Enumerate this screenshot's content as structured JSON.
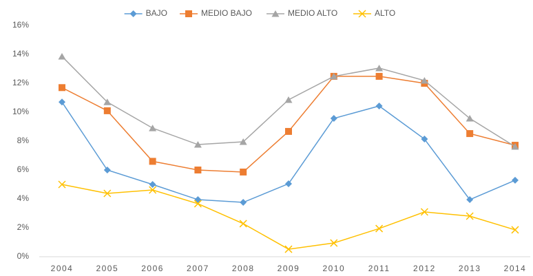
{
  "chart_data": {
    "type": "line",
    "categories": [
      "2004",
      "2005",
      "2006",
      "2007",
      "2008",
      "2009",
      "2010",
      "2011",
      "2012",
      "2013",
      "2014"
    ],
    "series": [
      {
        "name": "BAJO",
        "color": "#5b9bd5",
        "marker": "diamond",
        "values": [
          10.7,
          6.0,
          5.0,
          3.95,
          3.76,
          5.05,
          9.57,
          10.43,
          8.14,
          3.95,
          5.29
        ]
      },
      {
        "name": "MEDIO BAJO",
        "color": "#ed7d31",
        "marker": "square",
        "values": [
          11.7,
          10.1,
          6.6,
          6.0,
          5.86,
          8.67,
          12.48,
          12.48,
          12.0,
          8.52,
          7.71
        ]
      },
      {
        "name": "MEDIO ALTO",
        "color": "#a5a5a5",
        "marker": "triangle",
        "values": [
          13.86,
          10.7,
          8.9,
          7.76,
          7.95,
          10.86,
          12.48,
          13.05,
          12.19,
          9.57,
          7.62
        ]
      },
      {
        "name": "ALTO",
        "color": "#ffc000",
        "marker": "x",
        "values": [
          5.0,
          4.38,
          4.62,
          3.67,
          2.29,
          0.52,
          0.95,
          1.95,
          3.1,
          2.81,
          1.86
        ]
      }
    ],
    "ylim": [
      0,
      16
    ],
    "yticks": [
      {
        "value": 0,
        "label": "0%"
      },
      {
        "value": 2,
        "label": "2%"
      },
      {
        "value": 4,
        "label": "4%"
      },
      {
        "value": 6,
        "label": "6%"
      },
      {
        "value": 8,
        "label": "8%"
      },
      {
        "value": 10,
        "label": "10%"
      },
      {
        "value": 12,
        "label": "12%"
      },
      {
        "value": 14,
        "label": "14%"
      },
      {
        "value": 16,
        "label": "16%"
      }
    ],
    "legend": "top"
  }
}
